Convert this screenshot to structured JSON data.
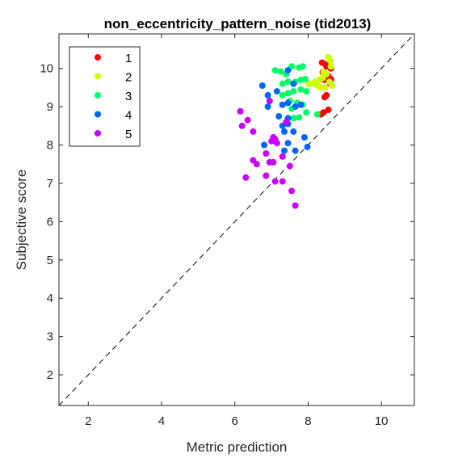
{
  "chart_data": {
    "type": "scatter",
    "title": "non_eccentricity_pattern_noise (tid2013)",
    "xlabel": "Metric prediction",
    "ylabel": "Subjective score",
    "xlim": [
      1.2,
      10.9
    ],
    "ylim": [
      1.2,
      10.9
    ],
    "xticks": [
      2,
      4,
      6,
      8,
      10
    ],
    "yticks": [
      2,
      3,
      4,
      5,
      6,
      7,
      8,
      9,
      10
    ],
    "grid": false,
    "legend_position": "top-left",
    "reference_line": "diagonal dashed y = x",
    "series": [
      {
        "name": "1",
        "color": "#ff0000",
        "points": [
          [
            8.5,
            10.05
          ],
          [
            8.62,
            10.0
          ],
          [
            8.4,
            9.9
          ],
          [
            8.55,
            9.8
          ],
          [
            8.45,
            9.7
          ],
          [
            8.6,
            9.6
          ],
          [
            8.38,
            10.15
          ],
          [
            8.5,
            9.3
          ],
          [
            8.45,
            9.25
          ],
          [
            8.55,
            8.92
          ],
          [
            8.42,
            8.85
          ],
          [
            8.35,
            8.8
          ],
          [
            8.62,
            9.72
          ],
          [
            8.48,
            10.1
          ]
        ]
      },
      {
        "name": "2",
        "color": "#ccff00",
        "points": [
          [
            8.55,
            10.3
          ],
          [
            8.6,
            10.2
          ],
          [
            8.62,
            10.05
          ],
          [
            8.5,
            9.85
          ],
          [
            8.4,
            9.75
          ],
          [
            8.3,
            9.7
          ],
          [
            8.2,
            9.65
          ],
          [
            8.1,
            9.6
          ],
          [
            8.0,
            9.6
          ],
          [
            8.25,
            9.55
          ],
          [
            8.35,
            9.5
          ],
          [
            8.45,
            9.5
          ],
          [
            8.65,
            9.55
          ],
          [
            8.58,
            9.65
          ],
          [
            8.42,
            9.9
          ]
        ]
      },
      {
        "name": "3",
        "color": "#00ff66",
        "points": [
          [
            7.1,
            9.95
          ],
          [
            7.25,
            9.92
          ],
          [
            7.4,
            9.85
          ],
          [
            7.55,
            10.05
          ],
          [
            7.75,
            10.02
          ],
          [
            7.85,
            10.05
          ],
          [
            7.3,
            9.6
          ],
          [
            7.45,
            9.65
          ],
          [
            7.65,
            9.65
          ],
          [
            7.8,
            9.7
          ],
          [
            7.92,
            9.72
          ],
          [
            7.3,
            9.3
          ],
          [
            7.45,
            9.35
          ],
          [
            7.6,
            9.4
          ],
          [
            7.8,
            9.45
          ],
          [
            7.95,
            9.4
          ],
          [
            7.5,
            9.15
          ],
          [
            7.7,
            9.1
          ],
          [
            7.85,
            9.05
          ],
          [
            7.55,
            8.95
          ],
          [
            7.6,
            8.7
          ],
          [
            7.75,
            8.72
          ],
          [
            7.95,
            8.85
          ],
          [
            8.25,
            8.8
          ]
        ]
      },
      {
        "name": "4",
        "color": "#0066ff",
        "points": [
          [
            6.75,
            9.55
          ],
          [
            7.15,
            9.4
          ],
          [
            6.9,
            9.3
          ],
          [
            7.45,
            9.95
          ],
          [
            7.6,
            9.6
          ],
          [
            7.3,
            9.05
          ],
          [
            7.45,
            9.1
          ],
          [
            7.65,
            9.0
          ],
          [
            7.8,
            9.05
          ],
          [
            6.9,
            9.0
          ],
          [
            7.2,
            8.75
          ],
          [
            7.45,
            8.7
          ],
          [
            7.3,
            8.5
          ],
          [
            7.45,
            8.55
          ],
          [
            7.6,
            8.35
          ],
          [
            7.35,
            8.35
          ],
          [
            7.45,
            8.05
          ],
          [
            7.35,
            7.85
          ],
          [
            7.65,
            7.85
          ],
          [
            7.9,
            8.2
          ],
          [
            7.98,
            7.95
          ],
          [
            6.8,
            8.0
          ]
        ]
      },
      {
        "name": "5",
        "color": "#cc00ff",
        "points": [
          [
            6.15,
            8.88
          ],
          [
            6.35,
            8.65
          ],
          [
            6.2,
            8.5
          ],
          [
            6.5,
            8.35
          ],
          [
            6.95,
            9.15
          ],
          [
            7.05,
            8.2
          ],
          [
            7.0,
            8.1
          ],
          [
            7.1,
            8.15
          ],
          [
            7.15,
            8.05
          ],
          [
            6.85,
            7.78
          ],
          [
            7.3,
            7.7
          ],
          [
            6.5,
            7.6
          ],
          [
            6.6,
            7.5
          ],
          [
            6.95,
            7.55
          ],
          [
            7.05,
            7.55
          ],
          [
            7.5,
            7.45
          ],
          [
            6.3,
            7.15
          ],
          [
            6.85,
            7.2
          ],
          [
            7.1,
            7.05
          ],
          [
            7.3,
            7.05
          ],
          [
            7.55,
            6.8
          ],
          [
            7.65,
            6.42
          ],
          [
            7.4,
            8.6
          ]
        ]
      }
    ]
  }
}
